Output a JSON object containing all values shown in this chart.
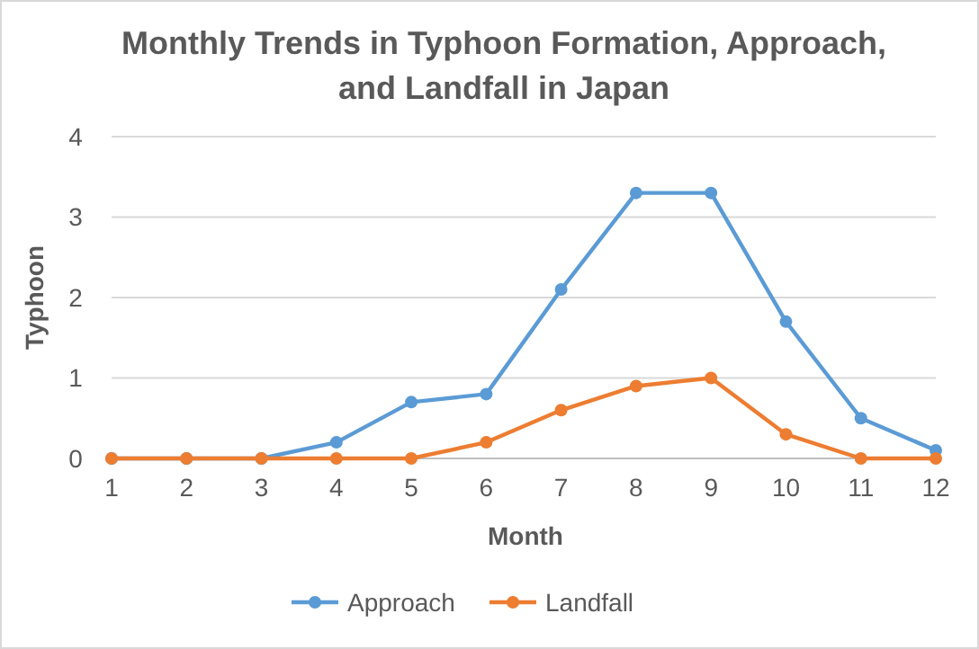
{
  "chart_data": {
    "type": "line",
    "title": "Monthly Trends in Typhoon Formation, Approach, and Landfall in Japan",
    "xlabel": "Month",
    "ylabel": "Typhoon",
    "categories": [
      "1",
      "2",
      "3",
      "4",
      "5",
      "6",
      "7",
      "8",
      "9",
      "10",
      "11",
      "12"
    ],
    "series": [
      {
        "name": "Approach",
        "color": "#5b9bd5",
        "values": [
          0,
          0,
          0,
          0.2,
          0.7,
          0.8,
          2.1,
          3.3,
          3.3,
          1.7,
          0.5,
          0.1
        ]
      },
      {
        "name": "Landfall",
        "color": "#ed7d31",
        "values": [
          0,
          0,
          0,
          0,
          0,
          0.2,
          0.6,
          0.9,
          1.0,
          0.3,
          0,
          0
        ]
      }
    ],
    "ylim": [
      0,
      4
    ],
    "yticks": [
      0,
      1,
      2,
      3,
      4
    ],
    "grid": "y",
    "legend": "bottom",
    "marker": "circle",
    "line_style": "solid"
  }
}
